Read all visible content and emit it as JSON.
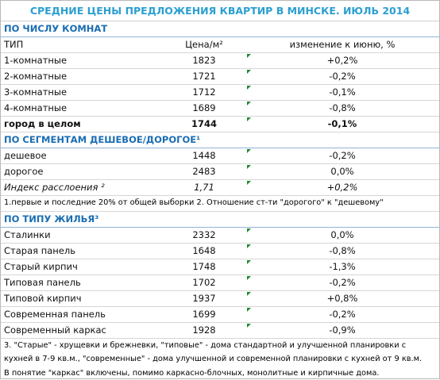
{
  "title": "СРЕДНИЕ ЦЕНЫ ПРЕДЛОЖЕНИЯ КВАРТИР В МИНСКЕ. ИЮЛЬ 2014",
  "sections": [
    {
      "title": "ПО ЧИСЛУ КОМНАТ",
      "header": [
        "ТИП",
        "Цена/м²",
        "изменение к июню, %"
      ],
      "rows": [
        [
          "1-комнатные",
          1823,
          "+0,2%"
        ],
        [
          "2-комнатные",
          1721,
          "-0,2%"
        ],
        [
          "3-комнатные",
          1712,
          "-0,1%"
        ],
        [
          "4-комнатные",
          1689,
          "-0,8%"
        ]
      ],
      "total": [
        "город в целом",
        1744,
        "-0,1%"
      ]
    },
    {
      "title": "ПО СЕГМЕНТАМ ДЕШЕВОЕ/ДОРОГОЕ¹",
      "rows": [
        [
          "дешевое",
          1448,
          "-0,2%"
        ],
        [
          "дорогое",
          2483,
          "0,0%"
        ]
      ],
      "index": [
        "Индекс расслоения ²",
        "1,71",
        "+0,2%"
      ],
      "note": "1.первые и последние 20% от общей выборки 2. Отношение ст-ти \"дорогого\" к \"дешевому\""
    },
    {
      "title": "ПО ТИПУ ЖИЛЬЯ³",
      "rows": [
        [
          "Сталинки",
          2332,
          "0,0%"
        ],
        [
          "Старая панель",
          1648,
          "-0,8%"
        ],
        [
          "Старый кирпич",
          1748,
          "-1,3%"
        ],
        [
          "Типовая панель",
          1702,
          "-0,2%"
        ],
        [
          "Типовой кирпич",
          1937,
          "+0,8%"
        ],
        [
          "Современная панель",
          1699,
          "-0,2%"
        ],
        [
          "Современный каркас",
          1928,
          "-0,9%"
        ]
      ],
      "note": "3. \"Старые\" - хрущевки и брежневки, \"типовые\" - дома стандартной и улучшенной планировки с кухней в 7-9 кв.м., \"современные\" - дома улучшенной и современной планировки с кухней от 9 кв.м. В понятие \"каркас\" включены, помимо каркасно-блочных, монолитные и кирпичные дома."
    }
  ]
}
